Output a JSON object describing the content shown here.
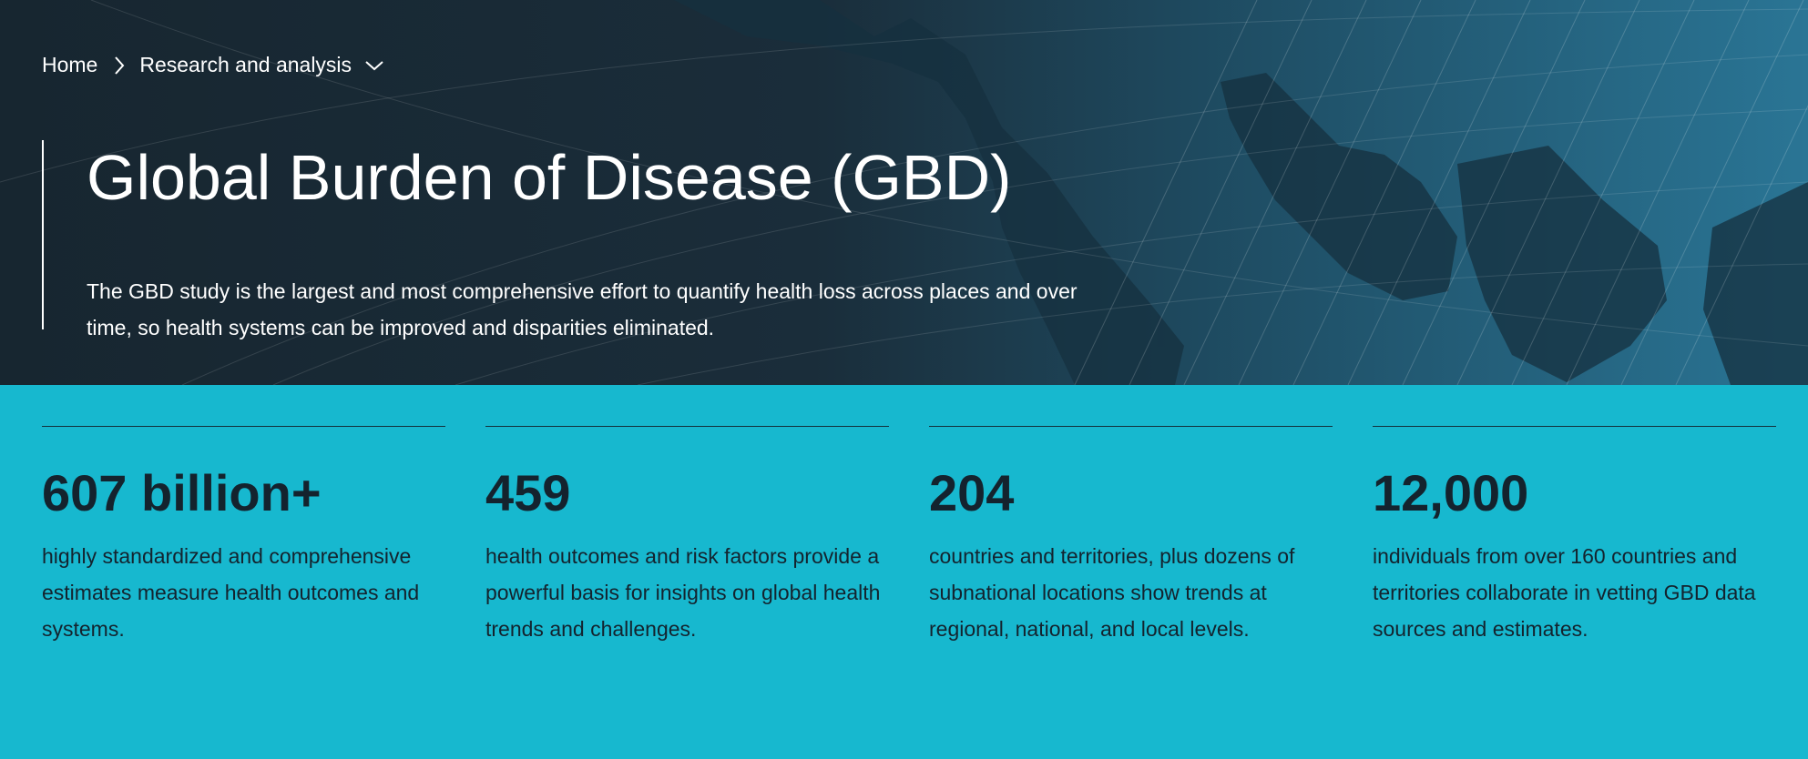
{
  "breadcrumb": {
    "home": "Home",
    "current": "Research and analysis"
  },
  "hero": {
    "title": "Global Burden of Disease (GBD)",
    "description": "The GBD study is the largest and most comprehensive effort to quantify health loss across places and over time, so health systems can be improved and disparities eliminated."
  },
  "stats": [
    {
      "value": "607 billion+",
      "text": "highly standardized and comprehensive estimates measure health outcomes and systems."
    },
    {
      "value": "459",
      "text": "health outcomes and risk factors provide a powerful basis for insights on global health trends and challenges."
    },
    {
      "value": "204",
      "text": "countries and territories, plus dozens of subnational locations show trends at regional, national, and local levels."
    },
    {
      "value": "12,000",
      "text": "individuals from over 160 countries and territories collaborate in vetting GBD data sources and estimates."
    }
  ],
  "colors": {
    "hero_dark": "#172630",
    "hero_light": "#2a7595",
    "accent_teal": "#17b8cf",
    "text_dark": "#14232e"
  }
}
